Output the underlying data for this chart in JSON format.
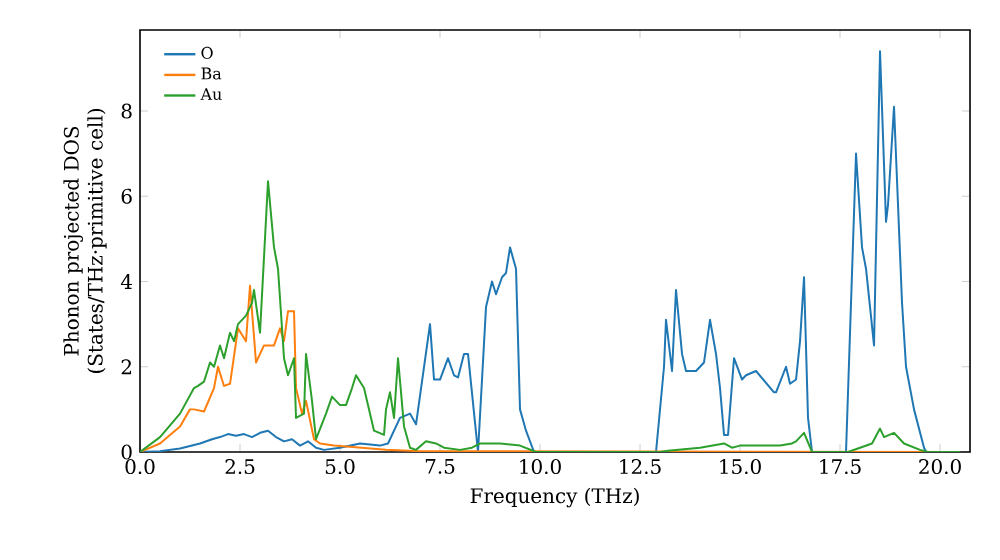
{
  "chart_data": {
    "type": "line",
    "xlabel": "Frequency (THz)",
    "ylabel": "Phonon projected DOS\n(States/THz·primitive cell)",
    "xlim": [
      0,
      20.75
    ],
    "ylim": [
      0,
      9.9
    ],
    "xticks": [
      {
        "value": 0,
        "label": "0.0"
      },
      {
        "value": 2.5,
        "label": "2.5"
      },
      {
        "value": 5,
        "label": "5.0"
      },
      {
        "value": 7.5,
        "label": "7.5"
      },
      {
        "value": 10,
        "label": "10.0"
      },
      {
        "value": 12.5,
        "label": "12.5"
      },
      {
        "value": 15,
        "label": "15.0"
      },
      {
        "value": 17.5,
        "label": "17.5"
      },
      {
        "value": 20,
        "label": "20.0"
      }
    ],
    "yticks": [
      0,
      2,
      4,
      6,
      8
    ],
    "grid": false,
    "legend": "top left",
    "marker": "none",
    "line_style": "solid",
    "series": [
      {
        "name": "O",
        "color": "#1f77b4",
        "x": [
          0,
          0.5,
          1,
          1.5,
          1.8,
          2.0,
          2.2,
          2.4,
          2.6,
          2.8,
          3.0,
          3.2,
          3.4,
          3.6,
          3.8,
          4.0,
          4.2,
          4.4,
          4.6,
          5.0,
          5.5,
          6.0,
          6.2,
          6.5,
          6.75,
          6.9,
          7.25,
          7.35,
          7.5,
          7.7,
          7.85,
          7.95,
          8.1,
          8.2,
          8.45,
          8.65,
          8.8,
          8.9,
          9.05,
          9.15,
          9.25,
          9.4,
          9.5,
          9.65,
          9.85,
          12.9,
          13.1,
          13.15,
          13.3,
          13.4,
          13.55,
          13.65,
          13.9,
          14.1,
          14.25,
          14.4,
          14.5,
          14.6,
          14.7,
          14.85,
          15.05,
          15.15,
          15.4,
          15.85,
          15.9,
          16.15,
          16.25,
          16.4,
          16.5,
          16.6,
          16.7,
          16.8,
          17.65,
          17.9,
          18.05,
          18.15,
          18.35,
          18.5,
          18.65,
          18.7,
          18.85,
          19.05,
          19.15,
          19.35,
          19.6,
          19.65,
          20.5
        ],
        "values": [
          0,
          0.02,
          0.08,
          0.2,
          0.3,
          0.35,
          0.42,
          0.38,
          0.42,
          0.35,
          0.45,
          0.5,
          0.35,
          0.25,
          0.3,
          0.15,
          0.25,
          0.1,
          0.05,
          0.1,
          0.2,
          0.15,
          0.2,
          0.8,
          0.9,
          0.65,
          3.0,
          1.7,
          1.7,
          2.2,
          1.8,
          1.75,
          2.3,
          2.3,
          0,
          3.4,
          4.0,
          3.7,
          4.1,
          4.2,
          4.8,
          4.3,
          1.0,
          0.5,
          0,
          0,
          2.0,
          3.1,
          1.9,
          3.8,
          2.3,
          1.9,
          1.9,
          2.1,
          3.1,
          2.3,
          1.5,
          0.4,
          0.4,
          2.2,
          1.7,
          1.8,
          1.9,
          1.4,
          1.4,
          2.0,
          1.6,
          1.7,
          2.6,
          4.1,
          0.8,
          0,
          0,
          7.0,
          4.8,
          4.3,
          2.5,
          9.4,
          5.4,
          5.8,
          8.1,
          3.5,
          2.0,
          1.0,
          0.1,
          0,
          0
        ]
      },
      {
        "name": "Ba",
        "color": "#ff7f0e",
        "x": [
          0,
          0.5,
          1.0,
          1.25,
          1.35,
          1.6,
          1.85,
          1.95,
          2.1,
          2.25,
          2.45,
          2.65,
          2.75,
          2.9,
          3.1,
          3.35,
          3.5,
          3.6,
          3.7,
          3.85,
          3.9,
          4.05,
          4.15,
          4.35,
          4.5,
          4.85,
          5.5,
          6.15,
          7.0,
          20.5
        ],
        "values": [
          0,
          0.2,
          0.6,
          1.0,
          1.0,
          0.95,
          1.5,
          2.0,
          1.55,
          1.6,
          2.9,
          2.6,
          3.9,
          2.1,
          2.5,
          2.5,
          2.9,
          2.6,
          3.3,
          3.3,
          1.5,
          0.9,
          1.2,
          0.3,
          0.2,
          0.15,
          0.1,
          0.05,
          0.02,
          0
        ]
      },
      {
        "name": "Au",
        "color": "#2ca02c",
        "x": [
          0,
          0.5,
          1.0,
          1.35,
          1.45,
          1.6,
          1.75,
          1.85,
          2.0,
          2.1,
          2.25,
          2.35,
          2.45,
          2.65,
          2.8,
          2.85,
          3.0,
          3.2,
          3.35,
          3.45,
          3.6,
          3.7,
          3.85,
          3.9,
          4.1,
          4.15,
          4.3,
          4.4,
          4.65,
          4.8,
          5.0,
          5.15,
          5.3,
          5.4,
          5.6,
          5.85,
          6.1,
          6.15,
          6.25,
          6.35,
          6.45,
          6.6,
          6.75,
          6.9,
          7.15,
          7.4,
          7.6,
          8.0,
          8.3,
          8.5,
          9.0,
          9.5,
          9.9,
          13.0,
          13.2,
          14.0,
          14.6,
          14.8,
          15.0,
          16.0,
          16.3,
          16.4,
          16.6,
          16.8,
          17.7,
          18.0,
          18.3,
          18.5,
          18.6,
          18.85,
          19.1,
          19.5,
          19.7,
          20.5
        ],
        "values": [
          0,
          0.35,
          0.9,
          1.5,
          1.55,
          1.65,
          2.1,
          2.0,
          2.5,
          2.2,
          2.8,
          2.6,
          3.0,
          3.2,
          3.5,
          3.8,
          2.8,
          6.35,
          4.8,
          4.3,
          2.2,
          1.8,
          2.2,
          0.8,
          0.9,
          2.3,
          1.2,
          0.3,
          0.9,
          1.3,
          1.1,
          1.1,
          1.5,
          1.8,
          1.5,
          0.5,
          0.4,
          1.0,
          1.4,
          0.8,
          2.2,
          0.6,
          0.1,
          0.05,
          0.25,
          0.2,
          0.1,
          0.05,
          0.1,
          0.2,
          0.2,
          0.15,
          0,
          0,
          0.03,
          0.1,
          0.2,
          0.1,
          0.15,
          0.15,
          0.2,
          0.25,
          0.45,
          0,
          0,
          0.1,
          0.2,
          0.55,
          0.35,
          0.45,
          0.2,
          0.05,
          0,
          0
        ]
      }
    ]
  }
}
